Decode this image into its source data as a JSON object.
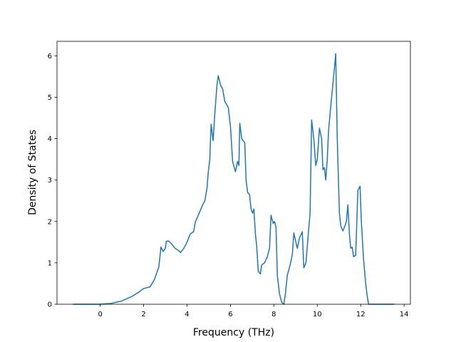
{
  "chart_data": {
    "type": "line",
    "x_label": "Frequency (THz)",
    "y_label": "Density of States",
    "color": "#1f77b4",
    "x": [
      -1.25,
      0,
      0.5,
      1.0,
      1.5,
      1.8,
      2.0,
      2.3,
      2.5,
      2.7,
      2.8,
      2.9,
      3.0,
      3.05,
      3.15,
      3.3,
      3.45,
      3.6,
      3.7,
      3.85,
      4.0,
      4.15,
      4.3,
      4.39,
      4.56,
      4.72,
      4.82,
      4.92,
      4.98,
      5.05,
      5.08,
      5.11,
      5.2,
      5.28,
      5.38,
      5.44,
      5.54,
      5.64,
      5.74,
      5.9,
      6.0,
      6.1,
      6.23,
      6.33,
      6.39,
      6.43,
      6.52,
      6.66,
      6.72,
      6.79,
      6.88,
      6.95,
      7.02,
      7.08,
      7.15,
      7.21,
      7.28,
      7.38,
      7.44,
      7.57,
      7.7,
      7.8,
      7.87,
      7.97,
      8.03,
      8.1,
      8.16,
      8.26,
      8.36,
      8.46,
      8.52,
      8.62,
      8.75,
      8.85,
      8.92,
      9.08,
      9.18,
      9.31,
      9.38,
      9.48,
      9.54,
      9.61,
      9.67,
      9.74,
      9.84,
      9.93,
      10.0,
      10.1,
      10.2,
      10.26,
      10.33,
      10.39,
      10.46,
      10.52,
      10.66,
      10.79,
      10.85,
      10.92,
      11.02,
      11.08,
      11.18,
      11.28,
      11.34,
      11.41,
      11.48,
      11.54,
      11.61,
      11.67,
      11.77,
      11.87,
      11.97,
      12.03,
      12.13,
      12.23,
      12.3,
      12.36,
      13.55
    ],
    "values": [
      0,
      0,
      0.02,
      0.08,
      0.2,
      0.3,
      0.38,
      0.42,
      0.6,
      0.9,
      1.38,
      1.27,
      1.35,
      1.52,
      1.53,
      1.45,
      1.35,
      1.3,
      1.25,
      1.35,
      1.5,
      1.7,
      1.75,
      2.0,
      2.2,
      2.4,
      2.5,
      2.8,
      3.2,
      3.5,
      3.95,
      4.35,
      3.95,
      4.6,
      5.3,
      5.52,
      5.3,
      5.2,
      4.9,
      4.75,
      4.3,
      3.45,
      3.2,
      3.45,
      3.35,
      4.37,
      4.0,
      3.9,
      3.0,
      2.7,
      2.65,
      2.3,
      2.2,
      2.3,
      1.7,
      1.4,
      0.8,
      0.73,
      0.95,
      1.0,
      1.15,
      1.35,
      2.15,
      1.95,
      2.0,
      1.85,
      0.7,
      0.25,
      0.05,
      0.0,
      0.2,
      0.7,
      0.95,
      1.2,
      1.72,
      1.35,
      1.6,
      1.75,
      0.88,
      1.0,
      1.4,
      1.85,
      2.2,
      4.45,
      4.0,
      3.35,
      3.5,
      4.25,
      4.0,
      3.25,
      3.3,
      3.0,
      3.5,
      4.2,
      5.0,
      5.7,
      6.05,
      4.0,
      2.2,
      1.9,
      1.77,
      1.9,
      2.0,
      2.4,
      1.7,
      1.35,
      1.38,
      1.15,
      1.18,
      2.75,
      2.85,
      2.0,
      1.1,
      0.5,
      0.2,
      0.0,
      0
    ],
    "xlim": [
      -1.99,
      14.29
    ],
    "ylim": [
      0,
      6.35
    ],
    "xticks": [
      0,
      2,
      4,
      6,
      8,
      10,
      12,
      14
    ],
    "yticks": [
      0,
      1,
      2,
      3,
      4,
      5,
      6
    ]
  }
}
